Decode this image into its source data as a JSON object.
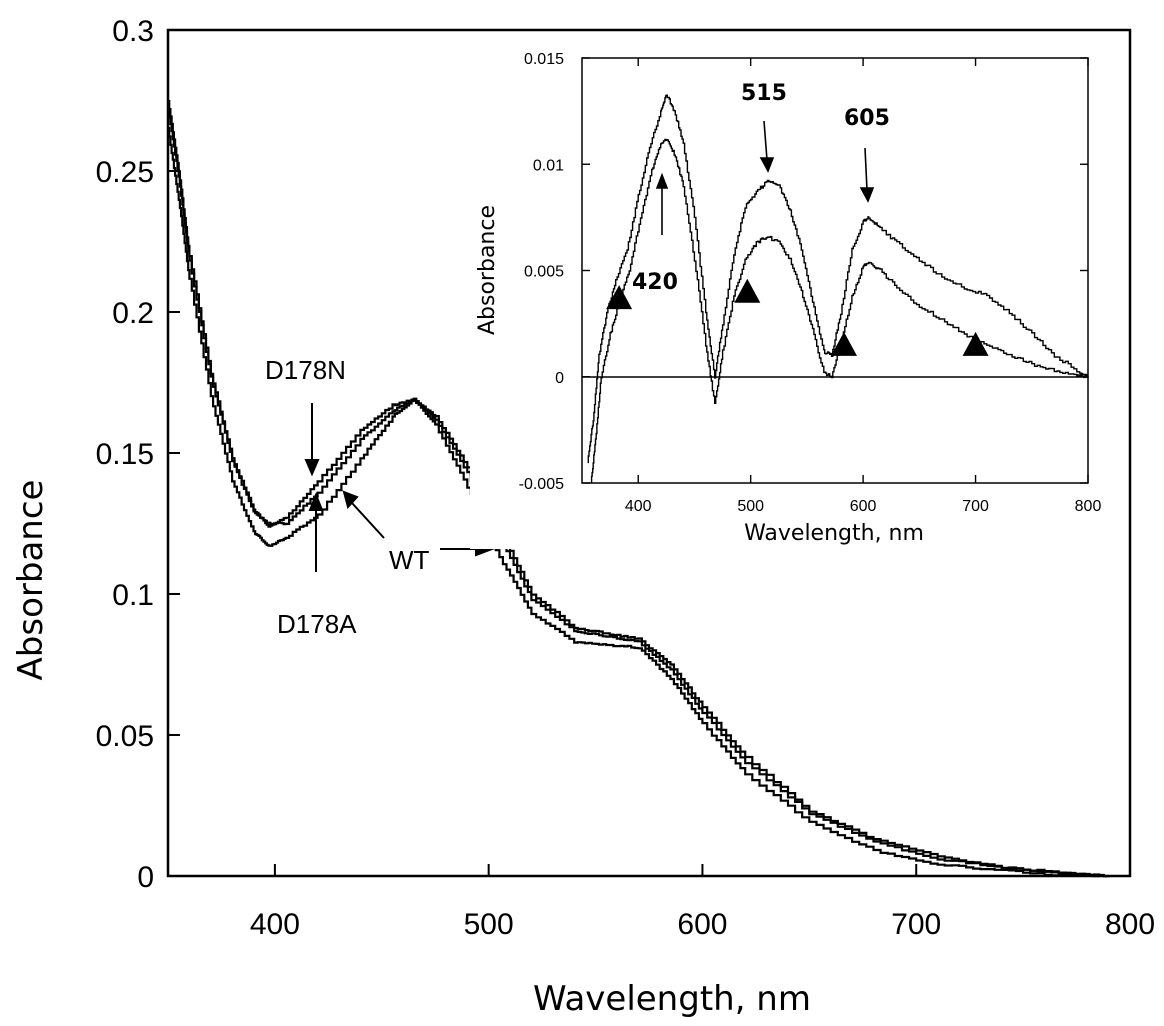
{
  "chart_data": [
    {
      "type": "line",
      "xlabel": "Wavelength, nm",
      "ylabel": "Absorbance",
      "xlim": [
        350,
        800
      ],
      "ylim": [
        0,
        0.3
      ],
      "xticks": [
        "400",
        "500",
        "600",
        "700",
        "800"
      ],
      "yticks": [
        "0",
        "0.05",
        "0.1",
        "0.15",
        "0.2",
        "0.25",
        "0.3"
      ],
      "grid": false,
      "series": [
        {
          "name": "D178N",
          "x": [
            350,
            355,
            360,
            370,
            380,
            390,
            397,
            405,
            420,
            440,
            455,
            465,
            475,
            490,
            505,
            520,
            540,
            555,
            570,
            585,
            600,
            620,
            650,
            680,
            710,
            740,
            770,
            790
          ],
          "y": [
            0.275,
            0.25,
            0.22,
            0.178,
            0.148,
            0.13,
            0.124,
            0.127,
            0.14,
            0.158,
            0.167,
            0.169,
            0.162,
            0.143,
            0.12,
            0.098,
            0.087,
            0.085,
            0.083,
            0.073,
            0.058,
            0.04,
            0.022,
            0.012,
            0.006,
            0.003,
            0.001,
            0.0
          ]
        },
        {
          "name": "D178A",
          "x": [
            350,
            355,
            360,
            370,
            380,
            390,
            397,
            405,
            420,
            440,
            455,
            465,
            475,
            490,
            505,
            520,
            540,
            555,
            570,
            585,
            600,
            620,
            650,
            680,
            710,
            740,
            770,
            790
          ],
          "y": [
            0.272,
            0.248,
            0.218,
            0.177,
            0.147,
            0.129,
            0.125,
            0.125,
            0.136,
            0.155,
            0.165,
            0.169,
            0.163,
            0.145,
            0.123,
            0.1,
            0.088,
            0.086,
            0.084,
            0.075,
            0.06,
            0.042,
            0.023,
            0.013,
            0.007,
            0.003,
            0.001,
            0.0
          ]
        },
        {
          "name": "WT",
          "x": [
            350,
            355,
            360,
            370,
            380,
            390,
            397,
            405,
            420,
            440,
            455,
            465,
            475,
            490,
            505,
            520,
            540,
            555,
            570,
            585,
            600,
            620,
            650,
            680,
            710,
            740,
            770,
            790
          ],
          "y": [
            0.265,
            0.24,
            0.212,
            0.17,
            0.14,
            0.122,
            0.117,
            0.12,
            0.128,
            0.148,
            0.163,
            0.169,
            0.16,
            0.138,
            0.113,
            0.093,
            0.083,
            0.082,
            0.081,
            0.07,
            0.054,
            0.036,
            0.019,
            0.009,
            0.004,
            0.002,
            0.0,
            0.0
          ]
        }
      ],
      "annotations": [
        {
          "text": "D178N",
          "x": 433,
          "y": 0.178
        },
        {
          "text": "WT",
          "x": 462,
          "y": 0.112
        },
        {
          "text": "D178A",
          "x": 426,
          "y": 0.088
        }
      ]
    },
    {
      "type": "line",
      "xlabel": "Wavelength, nm",
      "ylabel": "Absorbance",
      "xlim": [
        350,
        800
      ],
      "ylim": [
        -0.005,
        0.015
      ],
      "xticks": [
        "400",
        "500",
        "600",
        "700",
        "800"
      ],
      "yticks": [
        "-0.005",
        "0",
        "0.005",
        "0.01",
        "0.015"
      ],
      "grid": false,
      "series": [
        {
          "x": [
            355,
            360,
            365,
            372,
            380,
            390,
            400,
            410,
            420,
            425,
            432,
            440,
            450,
            460,
            468,
            475,
            485,
            495,
            505,
            515,
            525,
            535,
            545,
            555,
            565,
            572,
            580,
            590,
            600,
            605,
            615,
            630,
            650,
            670,
            690,
            710,
            730,
            750,
            770,
            790,
            800
          ],
          "y": [
            -0.004,
            -0.002,
            0.001,
            0.003,
            0.0045,
            0.006,
            0.0085,
            0.0108,
            0.0125,
            0.0133,
            0.0125,
            0.011,
            0.0075,
            0.003,
            0.0,
            0.0025,
            0.0058,
            0.008,
            0.0087,
            0.0092,
            0.009,
            0.0078,
            0.006,
            0.0035,
            0.0012,
            0.001,
            0.003,
            0.006,
            0.0073,
            0.0075,
            0.007,
            0.0063,
            0.0055,
            0.0047,
            0.0042,
            0.0038,
            0.003,
            0.002,
            0.001,
            0.0003,
            0.0
          ]
        },
        {
          "x": [
            358,
            362,
            367,
            375,
            383,
            392,
            402,
            412,
            420,
            425,
            432,
            440,
            450,
            460,
            468,
            475,
            485,
            495,
            505,
            515,
            525,
            535,
            545,
            555,
            565,
            572,
            580,
            590,
            600,
            605,
            615,
            630,
            650,
            670,
            690,
            710,
            730,
            750,
            770,
            790,
            800
          ],
          "y": [
            -0.005,
            -0.003,
            0.0,
            0.002,
            0.0035,
            0.005,
            0.0075,
            0.0097,
            0.011,
            0.0112,
            0.0105,
            0.009,
            0.0055,
            0.0015,
            -0.0013,
            0.0012,
            0.0038,
            0.0055,
            0.0063,
            0.0066,
            0.0063,
            0.0055,
            0.004,
            0.0022,
            0.0002,
            0.0,
            0.0015,
            0.0038,
            0.0052,
            0.0054,
            0.005,
            0.0042,
            0.0033,
            0.0027,
            0.002,
            0.0015,
            0.001,
            0.0006,
            0.0003,
            0.0001,
            0.0
          ]
        }
      ],
      "markers": [
        {
          "x": 383,
          "y": 0.0037
        },
        {
          "x": 497,
          "y": 0.004
        },
        {
          "x": 583,
          "y": 0.0015
        },
        {
          "x": 700,
          "y": 0.0015
        }
      ],
      "annotations": [
        {
          "text": "420",
          "x": 420,
          "y": 0.0045
        },
        {
          "text": "515",
          "x": 515,
          "y": 0.0133
        },
        {
          "text": "605",
          "x": 605,
          "y": 0.0121
        }
      ]
    }
  ]
}
